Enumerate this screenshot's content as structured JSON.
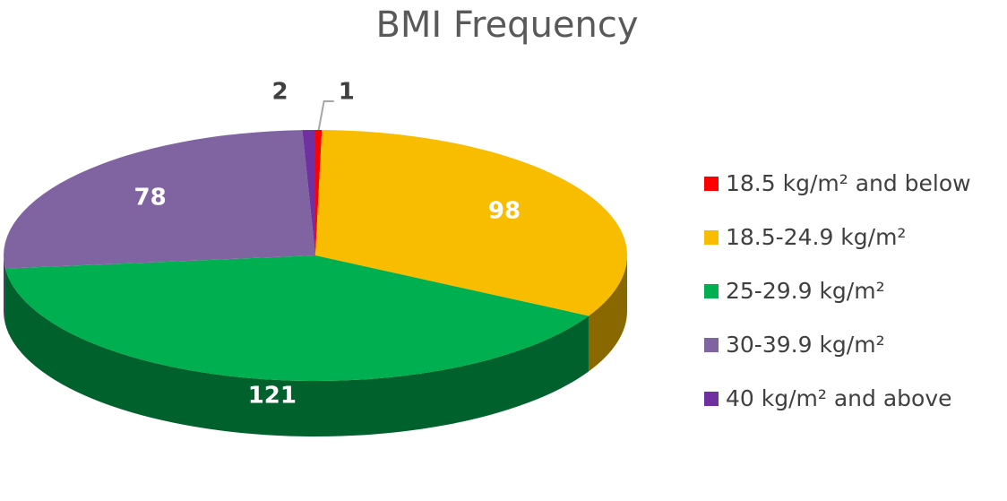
{
  "chart_data": {
    "type": "pie3d",
    "title": "BMI Frequency",
    "categories": [
      "18.5 kg/m² and below",
      "18.5-24.9 kg/m²",
      "25-29.9 kg/m²",
      "30-39.9 kg/m²",
      "40 kg/m² and above"
    ],
    "values": [
      1,
      98,
      121,
      78,
      2
    ],
    "colors": [
      "#ff0000",
      "#f9bd00",
      "#00b050",
      "#8064a2",
      "#7030a0"
    ],
    "legend": "right"
  }
}
